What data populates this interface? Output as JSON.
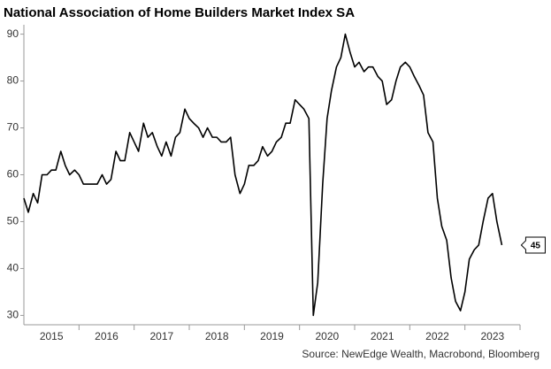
{
  "chart_data": {
    "type": "line",
    "title": "National Association of Home Builders Market Index SA",
    "source": "Source: NewEdge Wealth, Macrobond, Bloomberg",
    "x": [
      2015.0,
      2015.08,
      2015.17,
      2015.25,
      2015.33,
      2015.42,
      2015.5,
      2015.58,
      2015.67,
      2015.75,
      2015.83,
      2015.92,
      2016.0,
      2016.08,
      2016.17,
      2016.25,
      2016.33,
      2016.42,
      2016.5,
      2016.58,
      2016.67,
      2016.75,
      2016.83,
      2016.92,
      2017.0,
      2017.08,
      2017.17,
      2017.25,
      2017.33,
      2017.42,
      2017.5,
      2017.58,
      2017.67,
      2017.75,
      2017.83,
      2017.92,
      2018.0,
      2018.08,
      2018.17,
      2018.25,
      2018.33,
      2018.42,
      2018.5,
      2018.58,
      2018.67,
      2018.75,
      2018.83,
      2018.92,
      2019.0,
      2019.08,
      2019.17,
      2019.25,
      2019.33,
      2019.42,
      2019.5,
      2019.58,
      2019.67,
      2019.75,
      2019.83,
      2019.92,
      2020.0,
      2020.08,
      2020.17,
      2020.25,
      2020.33,
      2020.42,
      2020.5,
      2020.58,
      2020.67,
      2020.75,
      2020.83,
      2020.92,
      2021.0,
      2021.08,
      2021.17,
      2021.25,
      2021.33,
      2021.42,
      2021.5,
      2021.58,
      2021.67,
      2021.75,
      2021.83,
      2021.92,
      2022.0,
      2022.08,
      2022.17,
      2022.25,
      2022.33,
      2022.42,
      2022.5,
      2022.58,
      2022.67,
      2022.75,
      2022.83,
      2022.92,
      2023.0,
      2023.08,
      2023.17,
      2023.25,
      2023.33,
      2023.42,
      2023.5,
      2023.58,
      2023.67
    ],
    "series": [
      {
        "color": "#000000",
        "values": [
          55,
          52,
          56,
          54,
          60,
          60,
          61,
          61,
          65,
          62,
          60,
          61,
          60,
          58,
          58,
          58,
          58,
          60,
          58,
          59,
          65,
          63,
          63,
          69,
          67,
          65,
          71,
          68,
          69,
          66,
          64,
          67,
          64,
          68,
          69,
          74,
          72,
          71,
          70,
          68,
          70,
          68,
          68,
          67,
          67,
          68,
          60,
          56,
          58,
          62,
          62,
          63,
          66,
          64,
          65,
          67,
          68,
          71,
          71,
          76,
          75,
          74,
          72,
          30,
          37,
          58,
          72,
          78,
          83,
          85,
          90,
          86,
          83,
          84,
          82,
          83,
          83,
          81,
          80,
          75,
          76,
          80,
          83,
          84,
          83,
          81,
          79,
          77,
          69,
          67,
          55,
          49,
          46,
          38,
          33,
          31,
          35,
          42,
          44,
          45,
          50,
          55,
          56,
          50,
          45
        ]
      }
    ],
    "xlim": [
      2015,
      2024
    ],
    "xticks": [
      {
        "value": 2015.5,
        "label": "2015"
      },
      {
        "value": 2016.5,
        "label": "2016"
      },
      {
        "value": 2017.5,
        "label": "2017"
      },
      {
        "value": 2018.5,
        "label": "2018"
      },
      {
        "value": 2019.5,
        "label": "2019"
      },
      {
        "value": 2020.5,
        "label": "2020"
      },
      {
        "value": 2021.5,
        "label": "2021"
      },
      {
        "value": 2022.5,
        "label": "2022"
      },
      {
        "value": 2023.5,
        "label": "2023"
      }
    ],
    "ylim": [
      28,
      92
    ],
    "yticks": [
      30,
      40,
      50,
      60,
      70,
      80,
      90
    ],
    "grid": false
  }
}
